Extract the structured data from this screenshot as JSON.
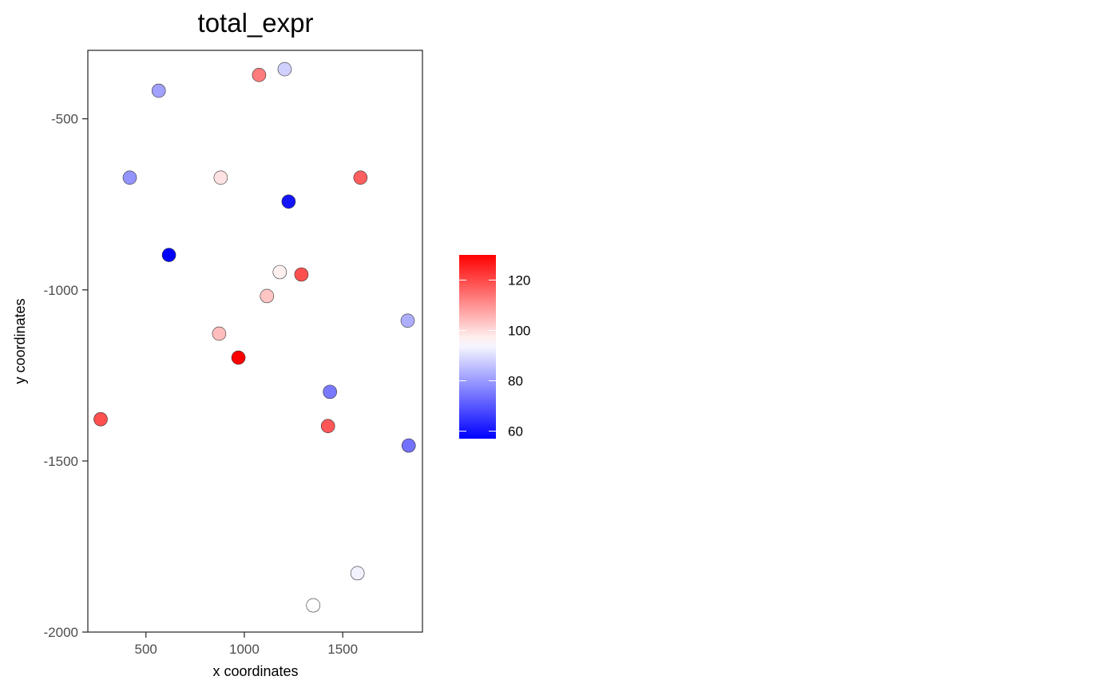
{
  "chart_data": {
    "type": "scatter",
    "title": "total_expr",
    "xlabel": "x coordinates",
    "ylabel": "y coordinates",
    "xlim": [
      205,
      1905
    ],
    "ylim": [
      -2000,
      -300
    ],
    "xticks": [
      {
        "value": 500,
        "label": "500"
      },
      {
        "value": 1000,
        "label": "1000"
      },
      {
        "value": 1500,
        "label": "1500"
      }
    ],
    "yticks": [
      {
        "value": -500,
        "label": "-500"
      },
      {
        "value": -1000,
        "label": "-1000"
      },
      {
        "value": -1500,
        "label": "-1500"
      },
      {
        "value": -2000,
        "label": "-2000"
      }
    ],
    "grid": false,
    "legend_position": "right",
    "color_scale": {
      "low": "#0000ff",
      "mid": "#ffffff",
      "high": "#ff0000",
      "min": 57,
      "mid_value": 95,
      "max": 130,
      "ticks": [
        {
          "value": 60,
          "label": "60"
        },
        {
          "value": 80,
          "label": "80"
        },
        {
          "value": 100,
          "label": "100"
        },
        {
          "value": 120,
          "label": "120"
        }
      ]
    },
    "points": [
      {
        "x": 1205,
        "y": -355,
        "value": 88
      },
      {
        "x": 1075,
        "y": -372,
        "value": 113
      },
      {
        "x": 565,
        "y": -418,
        "value": 81
      },
      {
        "x": 418,
        "y": -672,
        "value": 79
      },
      {
        "x": 880,
        "y": -672,
        "value": 99
      },
      {
        "x": 1590,
        "y": -672,
        "value": 117
      },
      {
        "x": 1225,
        "y": -742,
        "value": 60
      },
      {
        "x": 617,
        "y": -898,
        "value": 57
      },
      {
        "x": 1180,
        "y": -948,
        "value": 97
      },
      {
        "x": 1290,
        "y": -955,
        "value": 119
      },
      {
        "x": 1115,
        "y": -1018,
        "value": 103
      },
      {
        "x": 1830,
        "y": -1090,
        "value": 83
      },
      {
        "x": 872,
        "y": -1128,
        "value": 104
      },
      {
        "x": 970,
        "y": -1198,
        "value": 130
      },
      {
        "x": 1435,
        "y": -1298,
        "value": 75
      },
      {
        "x": 270,
        "y": -1378,
        "value": 119
      },
      {
        "x": 1425,
        "y": -1398,
        "value": 118
      },
      {
        "x": 1835,
        "y": -1455,
        "value": 74
      },
      {
        "x": 1575,
        "y": -1828,
        "value": 93
      },
      {
        "x": 1350,
        "y": -1922,
        "value": 95
      }
    ]
  }
}
